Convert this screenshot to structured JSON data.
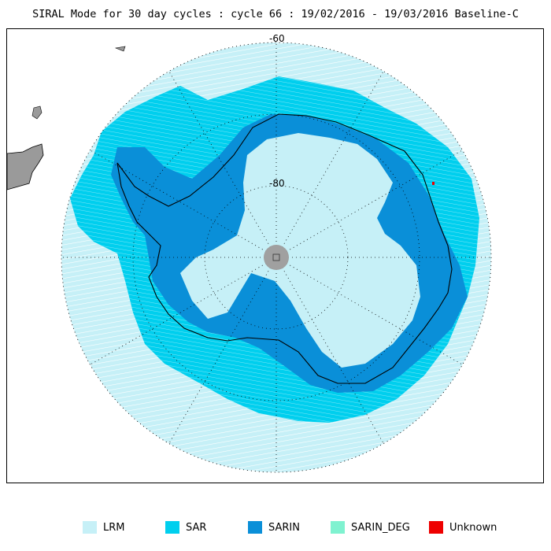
{
  "title": "SIRAL Mode for 30 day cycles : cycle 66 : 19/02/2016 - 19/03/2016 Baseline-C",
  "map": {
    "projection": "south-polar-stereographic",
    "lat_labels": [
      "-60",
      "-80"
    ]
  },
  "legend": [
    {
      "label": "LRM",
      "color": "#c6f0f7"
    },
    {
      "label": "SAR",
      "color": "#00cfee"
    },
    {
      "label": "SARIN",
      "color": "#0a8fd8"
    },
    {
      "label": "SARIN_DEG",
      "color": "#7ff2d0"
    },
    {
      "label": "Unknown",
      "color": "#ee0000"
    }
  ],
  "colors": {
    "land": "#9a9a9a",
    "ocean": "#ffffff",
    "graticule": "#000000",
    "pole_hole": "#a0a0a0"
  }
}
